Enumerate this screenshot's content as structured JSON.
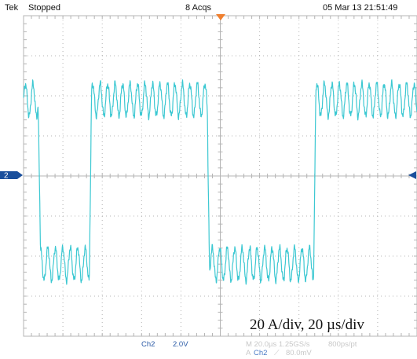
{
  "header": {
    "brand": "Tek",
    "run_state": "Stopped",
    "acquisitions": "8 Acqs",
    "timestamp": "05 Mar 13 21:51:49"
  },
  "channel_marker": "2",
  "annotation": "20 A/div, 20 µs/div",
  "footer": {
    "ch_label": "Ch2",
    "ch_scale": "2.0V",
    "timebase": "M 20.0µs 1.25GS/s",
    "record": "800ps/pt",
    "trigger_prefix": "A",
    "trigger_source": "Ch2",
    "trigger_slope": "⟋",
    "trigger_level": "80.0mV"
  },
  "colors": {
    "trace": "#3cc8d2",
    "grid": "#b4b4b4",
    "marker": "#1a4f9c",
    "trigger": "#f08030"
  },
  "chart_data": {
    "type": "line",
    "title": "",
    "xlabel": "",
    "ylabel": "",
    "xlim": [
      -100,
      100
    ],
    "ylim": [
      -80,
      80
    ],
    "x_unit": "µs",
    "y_unit": "A",
    "grid": true,
    "series": [
      {
        "name": "",
        "square_wave": {
          "high_mean": 38,
          "low_mean": -44,
          "period_us": 120,
          "transitions_us": [
            -92,
            -66,
            -6,
            48,
            110,
            160
          ],
          "first_level": "high",
          "ripple_amplitude": 8,
          "ripple_period_us": 3.8
        }
      }
    ]
  }
}
